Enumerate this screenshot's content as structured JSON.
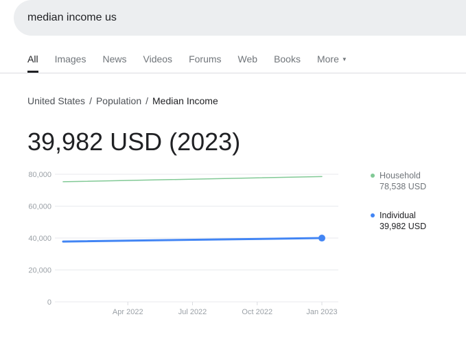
{
  "search": {
    "query": "median income us"
  },
  "tabs": [
    {
      "label": "All",
      "active": true
    },
    {
      "label": "Images"
    },
    {
      "label": "News"
    },
    {
      "label": "Videos"
    },
    {
      "label": "Forums"
    },
    {
      "label": "Web"
    },
    {
      "label": "Books"
    },
    {
      "label": "More"
    }
  ],
  "breadcrumb": [
    "United States",
    "Population",
    "Median Income"
  ],
  "headline": "39,982 USD (2023)",
  "legend": [
    {
      "name": "Household",
      "value": "78,538 USD",
      "color": "#81c995"
    },
    {
      "name": "Individual",
      "value": "39,982 USD",
      "color": "#4285f4"
    }
  ],
  "chart_data": {
    "type": "line",
    "x": [
      "Jan 2022",
      "Jan 2023"
    ],
    "series": [
      {
        "name": "Household",
        "values": [
          75300,
          78538
        ],
        "color": "#81c995"
      },
      {
        "name": "Individual",
        "values": [
          37800,
          39982
        ],
        "color": "#4285f4"
      }
    ],
    "yticks": [
      "0",
      "20,000",
      "40,000",
      "60,000",
      "80,000"
    ],
    "xticks": [
      "Apr 2022",
      "Jul 2022",
      "Oct 2022",
      "Jan 2023"
    ],
    "ylim": [
      0,
      80000
    ],
    "grid": true
  }
}
